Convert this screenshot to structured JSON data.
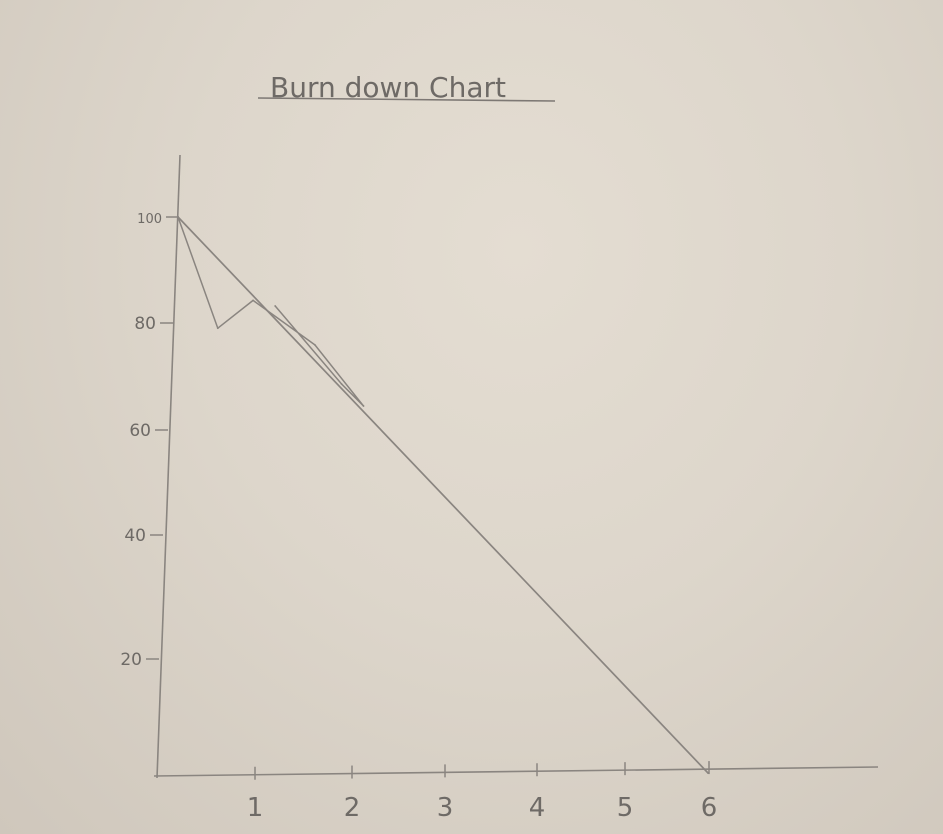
{
  "chart_data": {
    "type": "line",
    "title": "Burn down Chart",
    "xlabel": "",
    "ylabel": "",
    "x_ticks": [
      1,
      2,
      3,
      4,
      5,
      6
    ],
    "y_ticks": [
      20,
      40,
      60,
      80,
      100
    ],
    "y_tick_labels": [
      "20",
      "40",
      "60",
      "80",
      "100"
    ],
    "xlim": [
      0,
      7.6
    ],
    "ylim": [
      0,
      115
    ],
    "grid": false,
    "series": [
      {
        "values_xy": [
          [
            0,
            100
          ],
          [
            6,
            0
          ]
        ]
      },
      {
        "values_xy": [
          [
            0,
            100
          ],
          [
            0.45,
            80
          ],
          [
            0.85,
            85
          ],
          [
            1.55,
            77
          ],
          [
            2.1,
            66
          ],
          [
            1.85,
            70
          ],
          [
            1.1,
            84
          ]
        ]
      }
    ],
    "colors": {
      "paper": "#dfd8cd",
      "pencil": "#8a8580"
    }
  }
}
